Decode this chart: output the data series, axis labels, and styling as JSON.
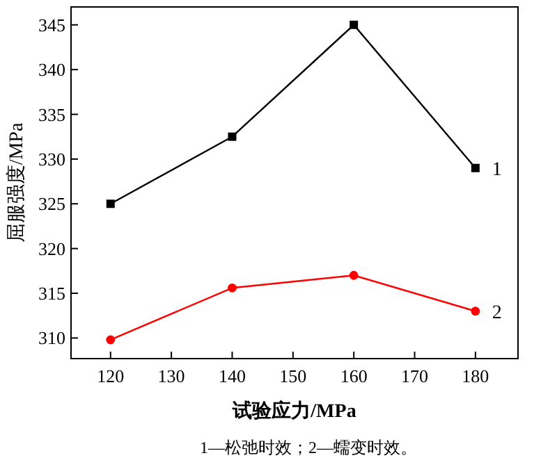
{
  "chart_data": {
    "type": "line",
    "xlabel": "试验应力/MPa",
    "ylabel": "屈服强度/MPa",
    "x": [
      120,
      140,
      160,
      180
    ],
    "series": [
      {
        "name": "1",
        "color": "#000000",
        "marker": "square",
        "values": [
          325,
          332.5,
          345,
          329
        ]
      },
      {
        "name": "2",
        "color": "#ff0000",
        "marker": "circle",
        "values": [
          309.8,
          315.6,
          317,
          313
        ]
      }
    ],
    "xlim": [
      113.5,
      187
    ],
    "ylim": [
      307.7,
      347
    ],
    "xticks": [
      120,
      130,
      140,
      150,
      160,
      170,
      180
    ],
    "yticks": [
      310,
      315,
      320,
      325,
      330,
      335,
      340,
      345
    ],
    "legend": "right",
    "grid": false,
    "line_style": "solid",
    "annotations": [
      "1—松弛时效；2—蠕变时效。"
    ]
  }
}
